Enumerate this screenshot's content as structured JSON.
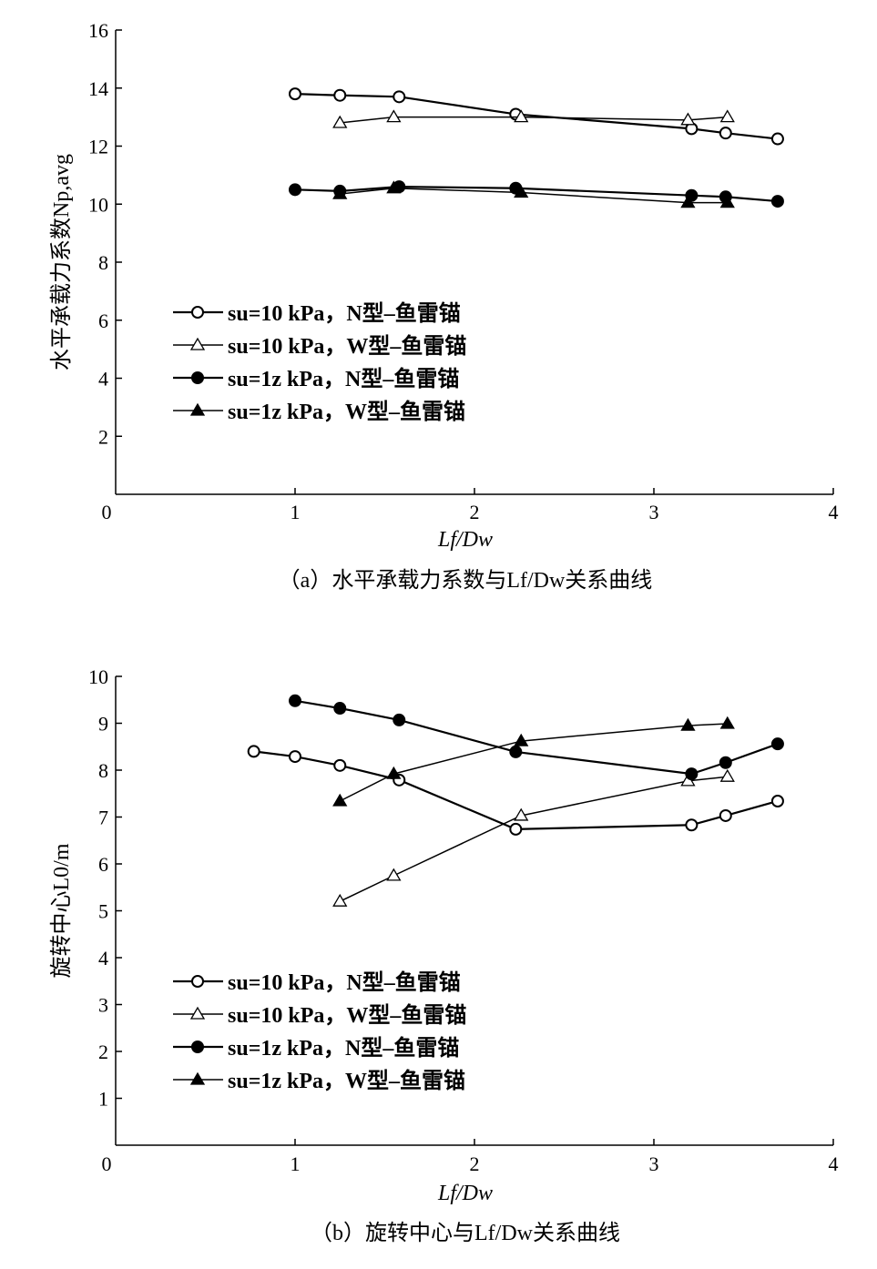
{
  "chart_data": [
    {
      "type": "line",
      "caption": "（a）水平承载力系数与Lf/Dw关系曲线",
      "xlabel": "Lf/Dw",
      "ylabel": "水平承载力系数Np,avg",
      "xlim": [
        0,
        4
      ],
      "ylim": [
        0,
        16
      ],
      "xticks": [
        "0",
        "1",
        "2",
        "3",
        "4"
      ],
      "yticks": [
        "2",
        "4",
        "6",
        "8",
        "10",
        "12",
        "14",
        "16"
      ],
      "legend_position": "left-middle",
      "series": [
        {
          "name": "su=10 kPa，N型–鱼雷锚",
          "marker": "open-circle",
          "x": [
            1.0,
            1.25,
            1.58,
            2.23,
            3.21,
            3.4,
            3.69
          ],
          "y": [
            13.8,
            13.75,
            13.7,
            13.1,
            12.6,
            12.45,
            12.25
          ]
        },
        {
          "name": "su=10 kPa，W型–鱼雷锚",
          "marker": "open-triangle",
          "x": [
            1.25,
            1.55,
            2.26,
            3.19,
            3.41
          ],
          "y": [
            12.8,
            13.0,
            13.0,
            12.9,
            13.0
          ]
        },
        {
          "name": "su=1z kPa，N型–鱼雷锚",
          "marker": "filled-circle",
          "x": [
            1.0,
            1.25,
            1.58,
            2.23,
            3.21,
            3.4,
            3.69
          ],
          "y": [
            10.5,
            10.45,
            10.6,
            10.55,
            10.3,
            10.25,
            10.1
          ]
        },
        {
          "name": "su=1z kPa，W型–鱼雷锚",
          "marker": "filled-triangle",
          "x": [
            1.25,
            1.55,
            2.26,
            3.19,
            3.41
          ],
          "y": [
            10.35,
            10.55,
            10.4,
            10.05,
            10.05
          ]
        }
      ]
    },
    {
      "type": "line",
      "caption": "（b）旋转中心与Lf/Dw关系曲线",
      "xlabel": "Lf/Dw",
      "ylabel": "旋转中心L0/m",
      "xlim": [
        0,
        4
      ],
      "ylim": [
        0,
        10
      ],
      "xticks": [
        "0",
        "1",
        "2",
        "3",
        "4"
      ],
      "yticks": [
        "1",
        "2",
        "3",
        "4",
        "5",
        "6",
        "7",
        "8",
        "9",
        "10"
      ],
      "legend_position": "bottom-left",
      "series": [
        {
          "name": "su=10 kPa，N型–鱼雷锚",
          "marker": "open-circle",
          "x": [
            0.77,
            1.0,
            1.25,
            1.58,
            2.23,
            3.21,
            3.4,
            3.69
          ],
          "y": [
            8.4,
            8.29,
            8.1,
            7.79,
            6.74,
            6.83,
            7.03,
            7.34
          ]
        },
        {
          "name": "su=10 kPa，W型–鱼雷锚",
          "marker": "open-triangle",
          "x": [
            1.25,
            1.55,
            2.26,
            3.19,
            3.41
          ],
          "y": [
            5.2,
            5.75,
            7.03,
            7.77,
            7.86
          ]
        },
        {
          "name": "su=1z kPa，N型–鱼雷锚",
          "marker": "filled-circle",
          "x": [
            1.0,
            1.25,
            1.58,
            2.23,
            3.21,
            3.4,
            3.69
          ],
          "y": [
            9.48,
            9.32,
            9.07,
            8.39,
            7.92,
            8.16,
            8.56
          ]
        },
        {
          "name": "su=1z kPa，W型–鱼雷锚",
          "marker": "filled-triangle",
          "x": [
            1.25,
            1.55,
            2.26,
            3.19,
            3.41
          ],
          "y": [
            7.34,
            7.92,
            8.62,
            8.95,
            8.99
          ]
        }
      ]
    }
  ]
}
